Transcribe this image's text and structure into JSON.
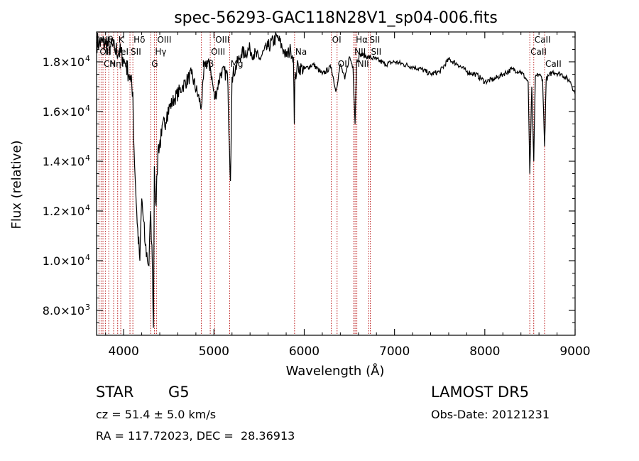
{
  "chart_data": {
    "type": "line",
    "title": "spec-56293-GAC118N28V1_sp04-006.fits",
    "xlabel": "Wavelength (Å)",
    "ylabel": "Flux (relative)",
    "xlim": [
      3700,
      9000
    ],
    "ylim": [
      7000,
      19200
    ],
    "x_ticks": [
      {
        "value": 4000,
        "label": "4000"
      },
      {
        "value": 5000,
        "label": "5000"
      },
      {
        "value": 6000,
        "label": "6000"
      },
      {
        "value": 7000,
        "label": "7000"
      },
      {
        "value": 8000,
        "label": "8000"
      },
      {
        "value": 9000,
        "label": "9000"
      }
    ],
    "y_ticks": [
      {
        "value": 8000,
        "mantissa": "8.0×10",
        "exp": "3"
      },
      {
        "value": 10000,
        "mantissa": "1.0×10",
        "exp": "4"
      },
      {
        "value": 12000,
        "mantissa": "1.2×10",
        "exp": "4"
      },
      {
        "value": 14000,
        "mantissa": "1.4×10",
        "exp": "4"
      },
      {
        "value": 16000,
        "mantissa": "1.6×10",
        "exp": "4"
      },
      {
        "value": 18000,
        "mantissa": "1.8×10",
        "exp": "4"
      }
    ],
    "series": [
      {
        "x": [
          3700,
          3800,
          3850,
          3900,
          3950,
          3990,
          4010,
          4030,
          4060,
          4080,
          4102,
          4110,
          4150,
          4180,
          4200,
          4240,
          4280,
          4300,
          4320,
          4330,
          4340,
          4360,
          4380,
          4420,
          4480,
          4560,
          4650,
          4750,
          4861,
          4900,
          4960,
          5007,
          5080,
          5150,
          5172,
          5183,
          5200,
          5300,
          5400,
          5500,
          5600,
          5700,
          5780,
          5800,
          5850,
          5880,
          5890,
          5896,
          5920,
          6000,
          6100,
          6200,
          6300,
          6350,
          6400,
          6450,
          6500,
          6540,
          6563,
          6580,
          6620,
          6700,
          6800,
          6900,
          7000,
          7100,
          7200,
          7300,
          7400,
          7500,
          7600,
          7700,
          7800,
          7900,
          8000,
          8100,
          8200,
          8300,
          8400,
          8480,
          8498,
          8520,
          8542,
          8560,
          8600,
          8640,
          8662,
          8680,
          8750,
          8850,
          8950,
          9000
        ],
        "y": [
          18800,
          18700,
          18600,
          18500,
          18400,
          18200,
          18000,
          17800,
          17500,
          17200,
          16800,
          15000,
          11500,
          10000,
          12500,
          10600,
          9800,
          12000,
          9500,
          7300,
          13800,
          12200,
          14500,
          15000,
          16000,
          16500,
          17000,
          17500,
          16200,
          18000,
          17800,
          16500,
          17600,
          17500,
          14500,
          13200,
          17400,
          18300,
          18500,
          18100,
          18600,
          19000,
          18400,
          18200,
          18500,
          18200,
          15500,
          17200,
          17800,
          17700,
          17900,
          17500,
          17800,
          16800,
          17900,
          17300,
          18200,
          17800,
          15500,
          18000,
          18300,
          18200,
          18100,
          17900,
          18000,
          17900,
          17800,
          17700,
          17500,
          17600,
          18100,
          17900,
          17600,
          17500,
          17200,
          17300,
          17500,
          17700,
          17600,
          17200,
          13500,
          17000,
          14000,
          17400,
          17500,
          17300,
          14600,
          17300,
          17600,
          17500,
          17200,
          16700
        ]
      }
    ],
    "line_colors": {
      "spectrum": "#000000",
      "markers": "#b30000"
    },
    "lines": [
      {
        "x": 3727,
        "row": 1,
        "label": "OII"
      },
      {
        "x": 3750,
        "row": 0,
        "label": "Hθ"
      },
      {
        "x": 3771,
        "row": 2,
        "label": "CN"
      },
      {
        "x": 3797,
        "row": 0,
        "label": ""
      },
      {
        "x": 3835,
        "row": 2,
        "label": "Hη"
      },
      {
        "x": 3889,
        "row": 1,
        "label": "HeI"
      },
      {
        "x": 3934,
        "row": 0,
        "label": "K"
      },
      {
        "x": 3968,
        "row": 2,
        "label": "H"
      },
      {
        "x": 4070,
        "row": 1,
        "label": "SII"
      },
      {
        "x": 4102,
        "row": 0,
        "label": "Hδ"
      },
      {
        "x": 4300,
        "row": 2,
        "label": "G"
      },
      {
        "x": 4340,
        "row": 1,
        "label": "Hγ"
      },
      {
        "x": 4363,
        "row": 0,
        "label": "OIII"
      },
      {
        "x": 4861,
        "row": 2,
        "label": "Hβ"
      },
      {
        "x": 4959,
        "row": 1,
        "label": "OIII"
      },
      {
        "x": 5007,
        "row": 0,
        "label": "OIII"
      },
      {
        "x": 5175,
        "row": 2,
        "label": "Mg"
      },
      {
        "x": 5893,
        "row": 1,
        "label": "Na"
      },
      {
        "x": 6300,
        "row": 0,
        "label": "OI"
      },
      {
        "x": 6364,
        "row": 2,
        "label": "OI"
      },
      {
        "x": 6548,
        "row": 1,
        "label": "NII"
      },
      {
        "x": 6563,
        "row": 0,
        "label": "Hα"
      },
      {
        "x": 6583,
        "row": 2,
        "label": "NII"
      },
      {
        "x": 6716,
        "row": 0,
        "label": "SII"
      },
      {
        "x": 6731,
        "row": 1,
        "label": "SII"
      },
      {
        "x": 8498,
        "row": 1,
        "label": "CaII"
      },
      {
        "x": 8542,
        "row": 0,
        "label": "CaII"
      },
      {
        "x": 8662,
        "row": 2,
        "label": "CaII"
      }
    ]
  },
  "info": {
    "object_class": "STAR",
    "subclass": "G5",
    "redshift_line": "cz = 51.4 ± 5.0 km/s",
    "coords_line": "RA = 117.72023, DEC =  28.36913",
    "survey": "LAMOST DR5",
    "obs_date": "Obs-Date: 20121231"
  }
}
